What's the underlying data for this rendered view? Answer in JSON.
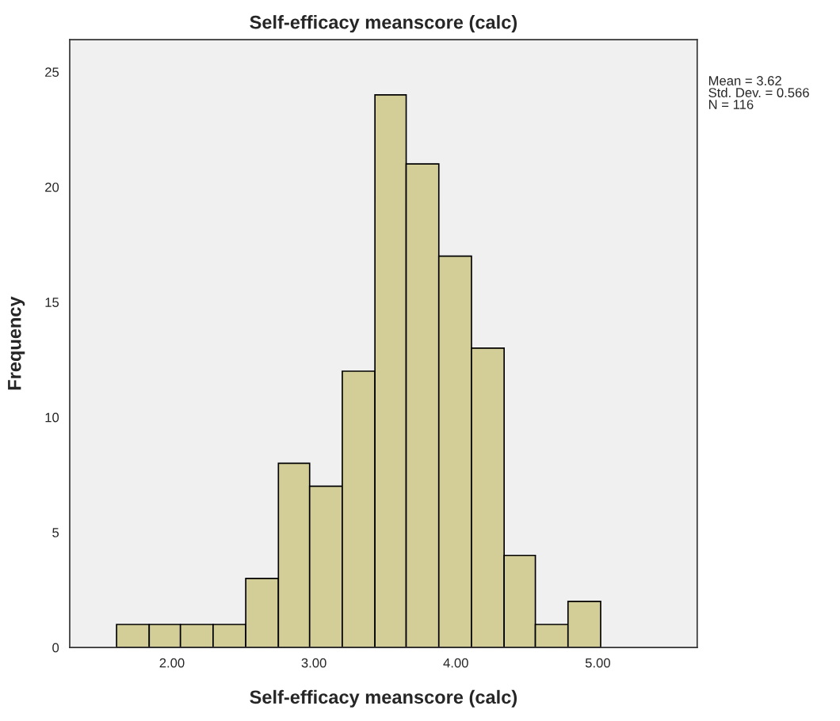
{
  "chart_data": {
    "type": "histogram",
    "title": "Self-efficacy meanscore (calc)",
    "xlabel": "Self-efficacy meanscore (calc)",
    "ylabel": "Frequency",
    "bins": [
      1.61,
      1.84,
      2.06,
      2.29,
      2.52,
      2.75,
      2.97,
      3.2,
      3.43,
      3.65,
      3.88,
      4.11,
      4.34,
      4.56,
      4.79,
      5.02
    ],
    "values": [
      1,
      1,
      1,
      1,
      3,
      8,
      7,
      12,
      24,
      21,
      17,
      13,
      4,
      1,
      2
    ],
    "color": "#d3ce97",
    "xlim": [
      1.28,
      5.7
    ],
    "xticks": [
      {
        "value": 2,
        "label": "2.00"
      },
      {
        "value": 3,
        "label": "3.00"
      },
      {
        "value": 4,
        "label": "4.00"
      },
      {
        "value": 5,
        "label": "5.00"
      }
    ],
    "ylim": [
      0,
      26.4
    ],
    "yticks": [
      0,
      5,
      10,
      15,
      20,
      25
    ],
    "grid": false,
    "annotations": [
      "Mean = 3.62",
      "Std. Dev. = 0.566",
      "N = 116"
    ]
  }
}
